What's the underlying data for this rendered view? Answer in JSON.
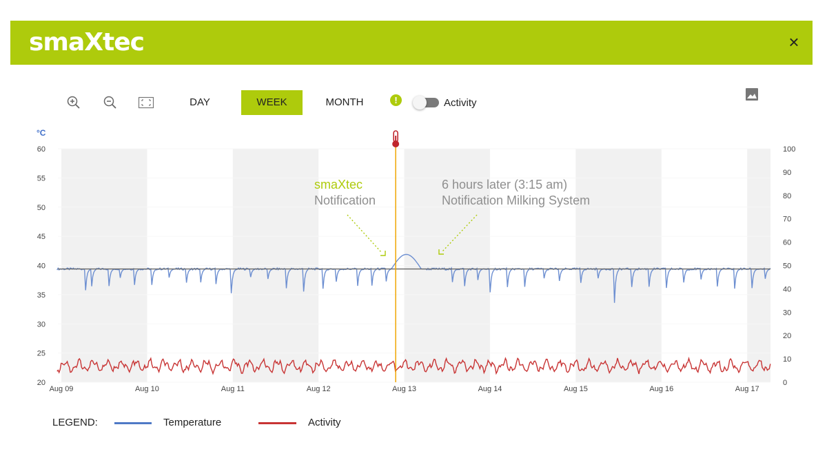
{
  "header": {
    "logo_text": "smaXtec",
    "close_label": "×",
    "brand_color": "#aecb0c"
  },
  "toolbar": {
    "zoom_in_icon": "zoom-in-icon",
    "zoom_out_icon": "zoom-out-icon",
    "fit_icon": "fit-screen-icon",
    "ranges": [
      {
        "label": "DAY",
        "active": false
      },
      {
        "label": "WEEK",
        "active": true
      },
      {
        "label": "MONTH",
        "active": false
      }
    ],
    "alert_glyph": "!",
    "activity_toggle_label": "Activity",
    "activity_toggle_on": false,
    "image_icon": "image-icon"
  },
  "chart": {
    "unit_label": "°C",
    "notification_1": {
      "line1": "smaXtec",
      "line2": "Notification"
    },
    "notification_2": {
      "line1": "6 hours later (3:15 am)",
      "line2": "Notification Milking System"
    }
  },
  "chart_data": {
    "type": "line",
    "x_labels": [
      "Aug 09",
      "Aug 10",
      "Aug 11",
      "Aug 12",
      "Aug 13",
      "Aug 14",
      "Aug 15",
      "Aug 16",
      "Aug 17"
    ],
    "y_left": {
      "label": "°C",
      "ticks": [
        20,
        25,
        30,
        35,
        40,
        45,
        50,
        55,
        60
      ],
      "range": [
        20,
        60
      ]
    },
    "y_right": {
      "ticks": [
        0,
        10,
        20,
        30,
        40,
        50,
        60,
        70,
        80,
        90,
        100
      ],
      "range": [
        0,
        100
      ]
    },
    "reference_temperature": 39.4,
    "event_marker_day": 3.9,
    "shaded_days": [
      0,
      2,
      4,
      6,
      8
    ],
    "series": [
      {
        "name": "Temperature",
        "color": "#6d8fd1",
        "axis": "left",
        "baseline": 39.4,
        "drink_dip_days": [
          0.28,
          0.35,
          0.55,
          0.68,
          0.85,
          1.05,
          1.25,
          1.45,
          1.62,
          1.8,
          1.98,
          2.2,
          2.4,
          2.62,
          2.82,
          3.05,
          3.2,
          3.45,
          3.62,
          3.78,
          4.55,
          4.7,
          4.85,
          5.0,
          5.2,
          5.4,
          5.62,
          5.8,
          6.05,
          6.25,
          6.45,
          6.65,
          6.85,
          7.05,
          7.25,
          7.45,
          7.65,
          7.85,
          8.05,
          8.2
        ],
        "drink_dip_depths": [
          35,
          35.5,
          35,
          37,
          36,
          35.5,
          37,
          35,
          36,
          36,
          34.5,
          37,
          36,
          35,
          33.5,
          35.5,
          36,
          35,
          36,
          35.5,
          34.5,
          35.5,
          36,
          35,
          35.5,
          35,
          36,
          35.5,
          35,
          36,
          33,
          35.5,
          35,
          34,
          35,
          35.5,
          36,
          35,
          34.5,
          36
        ],
        "fever_peak": {
          "day": 4.0,
          "value": 41.9
        }
      },
      {
        "name": "Activity",
        "color": "#c83434",
        "axis": "right",
        "mean": 7,
        "amplitude": 4
      }
    ]
  },
  "legend": {
    "title": "LEGEND:",
    "items": [
      "Temperature",
      "Activity"
    ]
  }
}
